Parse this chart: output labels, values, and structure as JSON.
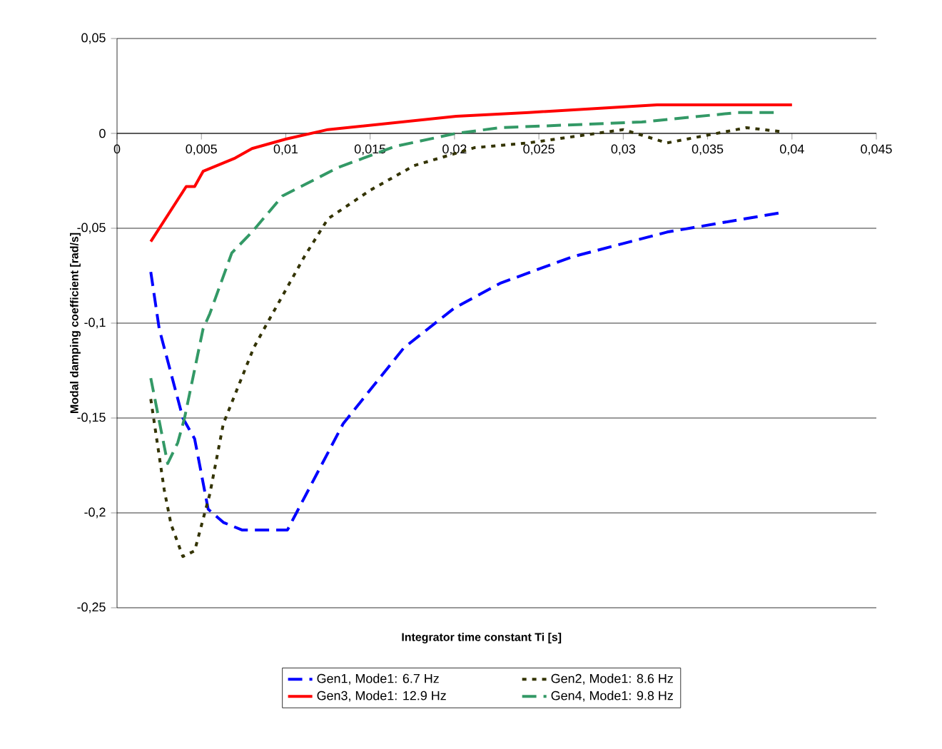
{
  "chart_data": {
    "type": "line",
    "xlabel": "Integrator time constant Ti [s]",
    "ylabel": "Modal damping coefficient [rad/s]",
    "xlim": [
      0,
      0.045
    ],
    "ylim": [
      -0.25,
      0.05
    ],
    "xticks": [
      {
        "value": 0,
        "label": "0"
      },
      {
        "value": 0.005,
        "label": "0,005"
      },
      {
        "value": 0.01,
        "label": "0,01"
      },
      {
        "value": 0.015,
        "label": "0,015"
      },
      {
        "value": 0.02,
        "label": "0,02"
      },
      {
        "value": 0.025,
        "label": "0,025"
      },
      {
        "value": 0.03,
        "label": "0,03"
      },
      {
        "value": 0.035,
        "label": "0,035"
      },
      {
        "value": 0.04,
        "label": "0,04"
      },
      {
        "value": 0.045,
        "label": "0,045"
      }
    ],
    "yticks": [
      {
        "value": -0.25,
        "label": "-0,25"
      },
      {
        "value": -0.2,
        "label": "-0,2"
      },
      {
        "value": -0.15,
        "label": "-0,15"
      },
      {
        "value": -0.1,
        "label": "-0,1"
      },
      {
        "value": -0.05,
        "label": "-0,05"
      },
      {
        "value": 0,
        "label": "0"
      },
      {
        "value": 0.05,
        "label": "0,05"
      }
    ],
    "grid": "y",
    "legend": "bottom",
    "marker": "none",
    "series": [
      {
        "name": "Gen1, Mode1: 6.7 Hz",
        "color": "#0000ff",
        "line_style": "dashed",
        "x": [
          0.002,
          0.0025,
          0.0039,
          0.0046,
          0.0054,
          0.0063,
          0.0074,
          0.0101,
          0.0134,
          0.017,
          0.02,
          0.0227,
          0.027,
          0.0326,
          0.0392
        ],
        "values": [
          -0.073,
          -0.103,
          -0.15,
          -0.161,
          -0.198,
          -0.205,
          -0.209,
          -0.209,
          -0.153,
          -0.113,
          -0.092,
          -0.079,
          -0.065,
          -0.052,
          -0.042
        ]
      },
      {
        "name": "Gen2, Mode1: 8.6 Hz",
        "color": "#333300",
        "line_style": "dotted",
        "x": [
          0.002,
          0.0028,
          0.0032,
          0.0039,
          0.0046,
          0.0055,
          0.0063,
          0.0081,
          0.0089,
          0.0111,
          0.0125,
          0.015,
          0.0176,
          0.0212,
          0.0244,
          0.03,
          0.0326,
          0.0373,
          0.0393
        ],
        "values": [
          -0.14,
          -0.188,
          -0.206,
          -0.223,
          -0.22,
          -0.19,
          -0.153,
          -0.113,
          -0.1,
          -0.065,
          -0.045,
          -0.03,
          -0.017,
          -0.0075,
          -0.005,
          0.002,
          -0.005,
          0.003,
          0.001
        ]
      },
      {
        "name": "Gen3, Mode1: 12.9 Hz",
        "color": "#ff0000",
        "line_style": "solid",
        "x": [
          0.002,
          0.0041,
          0.0046,
          0.0051,
          0.007,
          0.008,
          0.01,
          0.0125,
          0.0201,
          0.0244,
          0.032,
          0.04
        ],
        "values": [
          -0.057,
          -0.028,
          -0.028,
          -0.02,
          -0.013,
          -0.008,
          -0.003,
          0.002,
          0.009,
          0.011,
          0.015,
          0.015
        ]
      },
      {
        "name": "Gen4, Mode1: 9.8 Hz",
        "color": "#339966",
        "line_style": "dashed",
        "x": [
          0.002,
          0.003,
          0.0036,
          0.004,
          0.0051,
          0.0055,
          0.0068,
          0.008,
          0.0098,
          0.0131,
          0.0165,
          0.0201,
          0.0227,
          0.0311,
          0.0368,
          0.0392
        ],
        "values": [
          -0.129,
          -0.174,
          -0.163,
          -0.15,
          -0.103,
          -0.095,
          -0.063,
          -0.052,
          -0.033,
          -0.018,
          -0.0068,
          0,
          0.003,
          0.006,
          0.011,
          0.011
        ]
      }
    ]
  }
}
